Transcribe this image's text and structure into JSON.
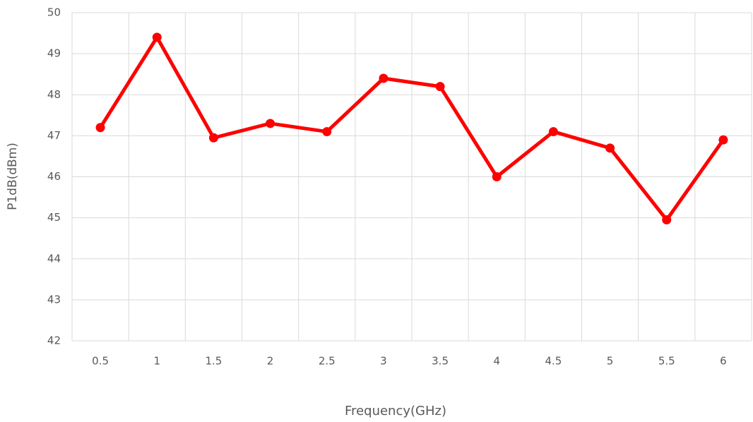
{
  "chart_data": {
    "type": "line",
    "x_label": "Frequency(GHz)",
    "y_label": "P1dB(dBm)",
    "categories": [
      "0.5",
      "1",
      "1.5",
      "2",
      "2.5",
      "3",
      "3.5",
      "4",
      "4.5",
      "5",
      "5.5",
      "6"
    ],
    "series": [
      {
        "name": "P1dB",
        "color": "#ff0000",
        "values": [
          47.2,
          49.4,
          46.95,
          47.3,
          47.1,
          48.4,
          48.2,
          46.0,
          47.1,
          46.7,
          44.95,
          46.9
        ]
      }
    ],
    "ylim": [
      42,
      50
    ],
    "yticks": [
      42,
      43,
      44,
      45,
      46,
      47,
      48,
      49,
      50
    ],
    "grid": true
  }
}
